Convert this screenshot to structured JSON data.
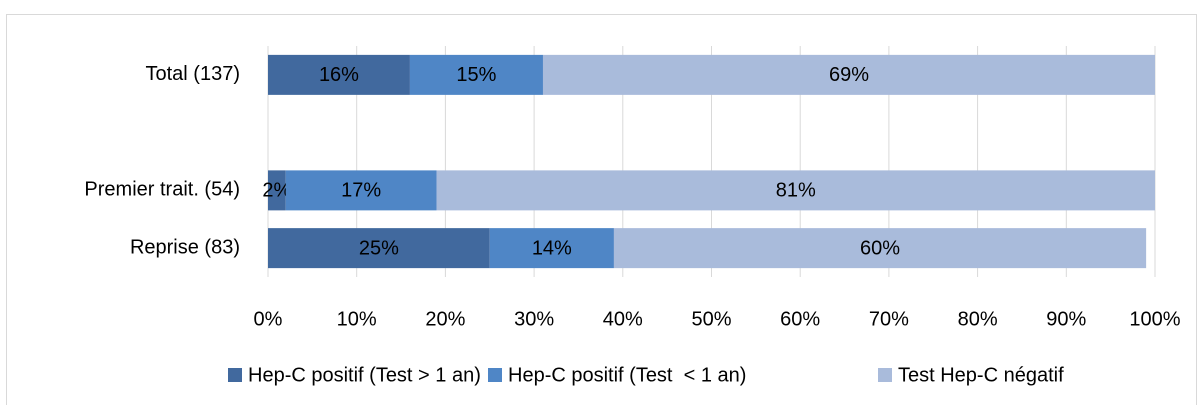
{
  "chart_data": {
    "type": "stacked_bar_horizontal",
    "categories": [
      "Total (137)",
      null,
      "Premier trait. (54)",
      "Reprise (83)"
    ],
    "series": [
      {
        "name": "Hep-C positif (Test > 1 an)",
        "color": "#41699e",
        "values": [
          16,
          null,
          2,
          25
        ],
        "value_labels": [
          "16%",
          null,
          "2%",
          "25%"
        ]
      },
      {
        "name": "Hep-C positif (Test  < 1 an)",
        "color": "#4f86c6",
        "values": [
          15,
          null,
          17,
          14
        ],
        "value_labels": [
          "15%",
          null,
          "17%",
          "14%"
        ]
      },
      {
        "name": "Test Hep-C négatif",
        "color": "#a9bbdb",
        "values": [
          69,
          null,
          81,
          60
        ],
        "value_labels": [
          "69%",
          null,
          "81%",
          "60%"
        ]
      }
    ],
    "xlim": [
      0,
      100
    ],
    "xticks": [
      {
        "value": 0,
        "label": "0%"
      },
      {
        "value": 10,
        "label": "10%"
      },
      {
        "value": 20,
        "label": "20%"
      },
      {
        "value": 30,
        "label": "30%"
      },
      {
        "value": 40,
        "label": "40%"
      },
      {
        "value": 50,
        "label": "50%"
      },
      {
        "value": 60,
        "label": "60%"
      },
      {
        "value": 70,
        "label": "70%"
      },
      {
        "value": 80,
        "label": "80%"
      },
      {
        "value": 90,
        "label": "90%"
      },
      {
        "value": 100,
        "label": "100%"
      }
    ],
    "grid": true,
    "legend": "bottom"
  }
}
